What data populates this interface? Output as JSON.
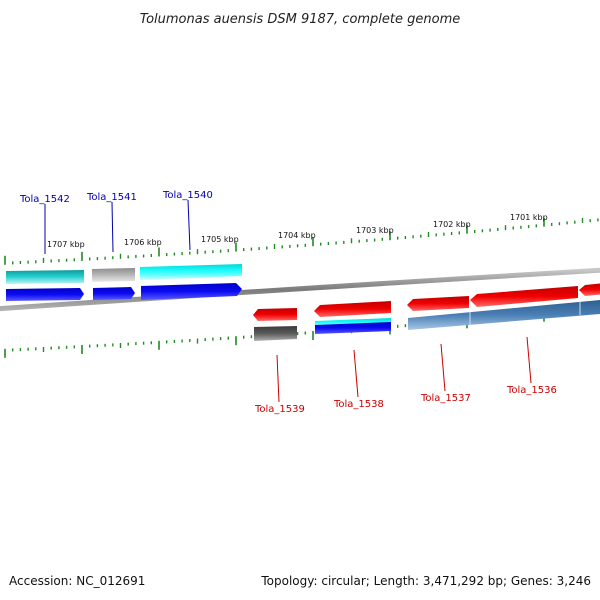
{
  "title": "Tolumonas auensis DSM 9187, complete genome",
  "footer": {
    "accession": "Accession: NC_012691",
    "topology": "Topology: circular; Length: 3,471,292 bp; Genes: 3,246"
  },
  "scale_labels": [
    "1707 kbp",
    "1706 kbp",
    "1705 kbp",
    "1704 kbp",
    "1703 kbp",
    "1702 kbp",
    "1701 kbp"
  ],
  "genes": [
    {
      "id": "Tola_1542",
      "strand": "forward",
      "color": "#0000aa"
    },
    {
      "id": "Tola_1541",
      "strand": "forward",
      "color": "#0000aa"
    },
    {
      "id": "Tola_1540",
      "strand": "forward",
      "color": "#0000aa"
    },
    {
      "id": "Tola_1539",
      "strand": "reverse",
      "color": "#cc0000"
    },
    {
      "id": "Tola_1538",
      "strand": "reverse",
      "color": "#cc0000"
    },
    {
      "id": "Tola_1537",
      "strand": "reverse",
      "color": "#cc0000"
    },
    {
      "id": "Tola_1536",
      "strand": "reverse",
      "color": "#cc0000"
    }
  ],
  "colors": {
    "backbone": "#8a8a8a",
    "ticks": "#228b22",
    "cyan": "#22cccc",
    "grey": "#aaaaaa",
    "blue": "#0000ee",
    "red": "#ee0000",
    "steelblue": "#4a7fb5",
    "darkgrey": "#555555"
  }
}
